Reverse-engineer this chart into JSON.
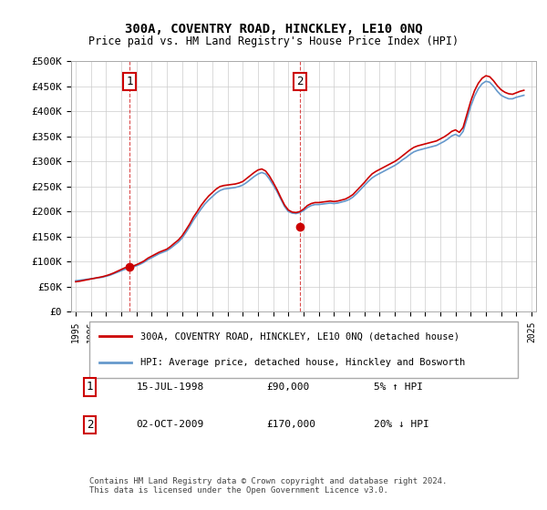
{
  "title": "300A, COVENTRY ROAD, HINCKLEY, LE10 0NQ",
  "subtitle": "Price paid vs. HM Land Registry's House Price Index (HPI)",
  "footer": "Contains HM Land Registry data © Crown copyright and database right 2024.\nThis data is licensed under the Open Government Licence v3.0.",
  "legend_line1": "300A, COVENTRY ROAD, HINCKLEY, LE10 0NQ (detached house)",
  "legend_line2": "HPI: Average price, detached house, Hinckley and Bosworth",
  "annotation1_label": "1",
  "annotation1_date": "15-JUL-1998",
  "annotation1_price": "£90,000",
  "annotation1_hpi": "5% ↑ HPI",
  "annotation2_label": "2",
  "annotation2_date": "02-OCT-2009",
  "annotation2_price": "£170,000",
  "annotation2_hpi": "20% ↓ HPI",
  "red_color": "#cc0000",
  "blue_color": "#6699cc",
  "background_color": "#ffffff",
  "grid_color": "#cccccc",
  "ylim": [
    0,
    500000
  ],
  "yticks": [
    0,
    50000,
    100000,
    150000,
    200000,
    250000,
    300000,
    350000,
    400000,
    450000,
    500000
  ],
  "ytick_labels": [
    "£0",
    "£50K",
    "£100K",
    "£150K",
    "£200K",
    "£250K",
    "£300K",
    "£350K",
    "£400K",
    "£450K",
    "£500K"
  ],
  "hpi_data": {
    "dates": [
      1995.0,
      1995.25,
      1995.5,
      1995.75,
      1996.0,
      1996.25,
      1996.5,
      1996.75,
      1997.0,
      1997.25,
      1997.5,
      1997.75,
      1998.0,
      1998.25,
      1998.5,
      1998.75,
      1999.0,
      1999.25,
      1999.5,
      1999.75,
      2000.0,
      2000.25,
      2000.5,
      2000.75,
      2001.0,
      2001.25,
      2001.5,
      2001.75,
      2002.0,
      2002.25,
      2002.5,
      2002.75,
      2003.0,
      2003.25,
      2003.5,
      2003.75,
      2004.0,
      2004.25,
      2004.5,
      2004.75,
      2005.0,
      2005.25,
      2005.5,
      2005.75,
      2006.0,
      2006.25,
      2006.5,
      2006.75,
      2007.0,
      2007.25,
      2007.5,
      2007.75,
      2008.0,
      2008.25,
      2008.5,
      2008.75,
      2009.0,
      2009.25,
      2009.5,
      2009.75,
      2010.0,
      2010.25,
      2010.5,
      2010.75,
      2011.0,
      2011.25,
      2011.5,
      2011.75,
      2012.0,
      2012.25,
      2012.5,
      2012.75,
      2013.0,
      2013.25,
      2013.5,
      2013.75,
      2014.0,
      2014.25,
      2014.5,
      2014.75,
      2015.0,
      2015.25,
      2015.5,
      2015.75,
      2016.0,
      2016.25,
      2016.5,
      2016.75,
      2017.0,
      2017.25,
      2017.5,
      2017.75,
      2018.0,
      2018.25,
      2018.5,
      2018.75,
      2019.0,
      2019.25,
      2019.5,
      2019.75,
      2020.0,
      2020.25,
      2020.5,
      2020.75,
      2021.0,
      2021.25,
      2021.5,
      2021.75,
      2022.0,
      2022.25,
      2022.5,
      2022.75,
      2023.0,
      2023.25,
      2023.5,
      2023.75,
      2024.0,
      2024.25,
      2024.5
    ],
    "values": [
      62000,
      63000,
      64000,
      65000,
      66000,
      67000,
      68000,
      69000,
      71000,
      73000,
      76000,
      79000,
      82000,
      85000,
      87000,
      89000,
      92000,
      95000,
      99000,
      104000,
      108000,
      112000,
      116000,
      119000,
      122000,
      127000,
      133000,
      139000,
      147000,
      158000,
      170000,
      183000,
      194000,
      205000,
      215000,
      223000,
      230000,
      237000,
      242000,
      245000,
      246000,
      247000,
      248000,
      250000,
      253000,
      258000,
      264000,
      270000,
      275000,
      278000,
      275000,
      265000,
      253000,
      240000,
      225000,
      210000,
      200000,
      197000,
      196000,
      198000,
      202000,
      208000,
      212000,
      214000,
      214000,
      215000,
      216000,
      217000,
      216000,
      217000,
      219000,
      221000,
      224000,
      229000,
      236000,
      244000,
      252000,
      260000,
      267000,
      272000,
      276000,
      280000,
      284000,
      288000,
      292000,
      297000,
      303000,
      308000,
      314000,
      319000,
      322000,
      324000,
      326000,
      328000,
      330000,
      332000,
      336000,
      340000,
      345000,
      351000,
      354000,
      350000,
      360000,
      385000,
      410000,
      430000,
      445000,
      455000,
      460000,
      458000,
      450000,
      440000,
      432000,
      428000,
      425000,
      425000,
      428000,
      430000,
      432000
    ]
  },
  "price_data": {
    "dates": [
      1998.54,
      2009.75
    ],
    "values": [
      90000,
      170000
    ],
    "labels": [
      "1",
      "2"
    ]
  },
  "red_line_data": {
    "dates": [
      1995.0,
      1995.25,
      1995.5,
      1995.75,
      1996.0,
      1996.25,
      1996.5,
      1996.75,
      1997.0,
      1997.25,
      1997.5,
      1997.75,
      1998.0,
      1998.25,
      1998.5,
      1998.75,
      1999.0,
      1999.25,
      1999.5,
      1999.75,
      2000.0,
      2000.25,
      2000.5,
      2000.75,
      2001.0,
      2001.25,
      2001.5,
      2001.75,
      2002.0,
      2002.25,
      2002.5,
      2002.75,
      2003.0,
      2003.25,
      2003.5,
      2003.75,
      2004.0,
      2004.25,
      2004.5,
      2004.75,
      2005.0,
      2005.25,
      2005.5,
      2005.75,
      2006.0,
      2006.25,
      2006.5,
      2006.75,
      2007.0,
      2007.25,
      2007.5,
      2007.75,
      2008.0,
      2008.25,
      2008.5,
      2008.75,
      2009.0,
      2009.25,
      2009.5,
      2009.75,
      2010.0,
      2010.25,
      2010.5,
      2010.75,
      2011.0,
      2011.25,
      2011.5,
      2011.75,
      2012.0,
      2012.25,
      2012.5,
      2012.75,
      2013.0,
      2013.25,
      2013.5,
      2013.75,
      2014.0,
      2014.25,
      2014.5,
      2014.75,
      2015.0,
      2015.25,
      2015.5,
      2015.75,
      2016.0,
      2016.25,
      2016.5,
      2016.75,
      2017.0,
      2017.25,
      2017.5,
      2017.75,
      2018.0,
      2018.25,
      2018.5,
      2018.75,
      2019.0,
      2019.25,
      2019.5,
      2019.75,
      2020.0,
      2020.25,
      2020.5,
      2020.75,
      2021.0,
      2021.25,
      2021.5,
      2021.75,
      2022.0,
      2022.25,
      2022.5,
      2022.75,
      2023.0,
      2023.25,
      2023.5,
      2023.75,
      2024.0,
      2024.25,
      2024.5
    ],
    "values": [
      60000,
      61000,
      62500,
      64000,
      65500,
      67000,
      68500,
      70000,
      72000,
      74500,
      77500,
      81000,
      84500,
      88000,
      90000,
      91000,
      94000,
      97500,
      101500,
      107000,
      111000,
      115000,
      119000,
      122000,
      125000,
      130500,
      137000,
      143000,
      151500,
      163000,
      175000,
      189000,
      200000,
      212000,
      222000,
      231000,
      238000,
      245000,
      250000,
      252000,
      253000,
      254000,
      255000,
      257000,
      260000,
      266000,
      272000,
      278000,
      283000,
      285000,
      281000,
      271000,
      258000,
      244000,
      228000,
      213000,
      203000,
      199000,
      198000,
      200000,
      205000,
      212000,
      216000,
      218000,
      218000,
      219000,
      220000,
      221000,
      220000,
      221000,
      223000,
      225000,
      229000,
      234000,
      242000,
      250000,
      258000,
      267000,
      275000,
      280000,
      284000,
      288000,
      292000,
      296000,
      300000,
      305000,
      311000,
      317000,
      323000,
      328000,
      331000,
      333000,
      335000,
      337000,
      339000,
      341000,
      345000,
      349000,
      354000,
      360000,
      363000,
      358000,
      368000,
      394000,
      420000,
      441000,
      456000,
      466000,
      471000,
      469000,
      461000,
      451000,
      443000,
      438000,
      435000,
      434000,
      437000,
      440000,
      442000
    ]
  }
}
